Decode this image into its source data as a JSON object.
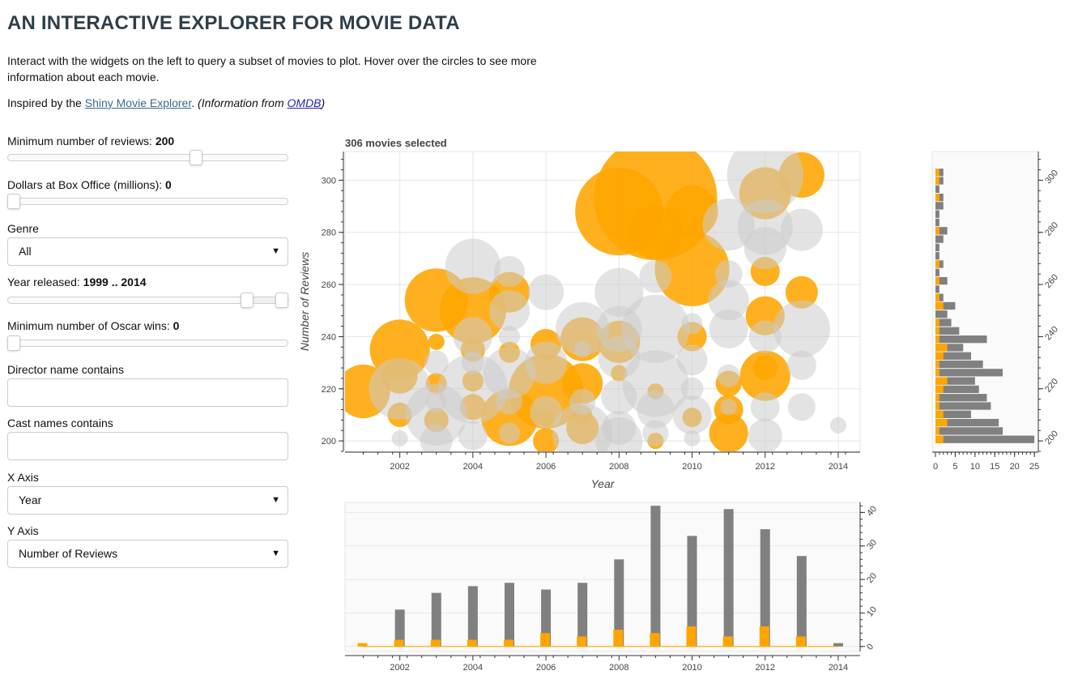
{
  "header": {
    "title": "AN INTERACTIVE EXPLORER FOR MOVIE DATA",
    "intro": "Interact with the widgets on the left to query a subset of movies to plot. Hover over the circles to see more information about each movie.",
    "inspired_prefix": "Inspired by the ",
    "shiny_link": "Shiny Movie Explorer",
    "inspired_mid": ". ",
    "info_prefix": "(Information from ",
    "omdb_link": "OMDB",
    "info_suffix": ")"
  },
  "controls": {
    "min_reviews": {
      "label": "Minimum number of reviews: ",
      "value": "200",
      "fraction": 0.68
    },
    "box_office": {
      "label": "Dollars at Box Office (millions): ",
      "value": "0",
      "fraction": 0.0
    },
    "genre": {
      "label": "Genre",
      "value": "All"
    },
    "year_released": {
      "label": "Year released: ",
      "value": "1999 .. 2014",
      "low_fraction": 0.87,
      "high_fraction": 1.0
    },
    "oscar_wins": {
      "label": "Minimum number of Oscar wins: ",
      "value": "0",
      "fraction": 0.0
    },
    "director": {
      "label": "Director name contains",
      "value": ""
    },
    "cast": {
      "label": "Cast names contains",
      "value": ""
    },
    "x_axis": {
      "label": "X Axis",
      "value": "Year"
    },
    "y_axis": {
      "label": "Y Axis",
      "value": "Number of Reviews"
    }
  },
  "icons": {
    "caret": "▼"
  },
  "colors": {
    "highlight": "#ffa500",
    "muted": "#cccccc",
    "hist": "#808080",
    "title": "#2f3f49"
  },
  "chart_data": [
    {
      "type": "scatter",
      "title": "306 movies selected",
      "xlabel": "Year",
      "ylabel": "Number of Reviews",
      "xlim": [
        2000.5,
        2014.6
      ],
      "ylim": [
        196,
        311
      ],
      "xticks": [
        2002,
        2004,
        2006,
        2008,
        2010,
        2012,
        2014
      ],
      "yticks": [
        200,
        220,
        240,
        260,
        280,
        300
      ],
      "grid": true,
      "series": [
        {
          "color": "#ffa500",
          "points": [
            {
              "x": 2001,
              "y": 219,
              "r": 3.3
            },
            {
              "x": 2002,
              "y": 235,
              "r": 3.7
            },
            {
              "x": 2002,
              "y": 225,
              "r": 2.2
            },
            {
              "x": 2002,
              "y": 210,
              "r": 1.5
            },
            {
              "x": 2003,
              "y": 254,
              "r": 3.9
            },
            {
              "x": 2003,
              "y": 238,
              "r": 1.0
            },
            {
              "x": 2003,
              "y": 222,
              "r": 1.3
            },
            {
              "x": 2003,
              "y": 208,
              "r": 1.5
            },
            {
              "x": 2004,
              "y": 250,
              "r": 4.1
            },
            {
              "x": 2004,
              "y": 235,
              "r": 1.5
            },
            {
              "x": 2004,
              "y": 223,
              "r": 1.3
            },
            {
              "x": 2004,
              "y": 213,
              "r": 1.6
            },
            {
              "x": 2005,
              "y": 257,
              "r": 2.5
            },
            {
              "x": 2005,
              "y": 234,
              "r": 1.3
            },
            {
              "x": 2005,
              "y": 209,
              "r": 3.5
            },
            {
              "x": 2006,
              "y": 237,
              "r": 1.9
            },
            {
              "x": 2006,
              "y": 219,
              "r": 4.6
            },
            {
              "x": 2006,
              "y": 200,
              "r": 1.6
            },
            {
              "x": 2006,
              "y": 209,
              "r": 1.0
            },
            {
              "x": 2007,
              "y": 239,
              "r": 2.7
            },
            {
              "x": 2007,
              "y": 222,
              "r": 2.5
            },
            {
              "x": 2007,
              "y": 210,
              "r": 1.2
            },
            {
              "x": 2007,
              "y": 205,
              "r": 2.0
            },
            {
              "x": 2008,
              "y": 288,
              "r": 5.4
            },
            {
              "x": 2008,
              "y": 238,
              "r": 2.6
            },
            {
              "x": 2008,
              "y": 226,
              "r": 1.0
            },
            {
              "x": 2009,
              "y": 293,
              "r": 7.6
            },
            {
              "x": 2009,
              "y": 280,
              "r": 3.3
            },
            {
              "x": 2009,
              "y": 219,
              "r": 1.0
            },
            {
              "x": 2009,
              "y": 200,
              "r": 1.0
            },
            {
              "x": 2010,
              "y": 288,
              "r": 3.2
            },
            {
              "x": 2010,
              "y": 266,
              "r": 4.6
            },
            {
              "x": 2010,
              "y": 240,
              "r": 1.8
            },
            {
              "x": 2010,
              "y": 209,
              "r": 1.2
            },
            {
              "x": 2011,
              "y": 222,
              "r": 1.6
            },
            {
              "x": 2011,
              "y": 212,
              "r": 1.8
            },
            {
              "x": 2011,
              "y": 203,
              "r": 2.4
            },
            {
              "x": 2012,
              "y": 295,
              "r": 3.2
            },
            {
              "x": 2012,
              "y": 265,
              "r": 1.8
            },
            {
              "x": 2012,
              "y": 248,
              "r": 2.4
            },
            {
              "x": 2012,
              "y": 228,
              "r": 1.5
            },
            {
              "x": 2012,
              "y": 225,
              "r": 3.1
            },
            {
              "x": 2013,
              "y": 302,
              "r": 2.8
            },
            {
              "x": 2013,
              "y": 257,
              "r": 2.0
            }
          ]
        },
        {
          "color": "#cccccc",
          "points": [
            {
              "x": 2002,
              "y": 220,
              "r": 3.8
            },
            {
              "x": 2002,
              "y": 201,
              "r": 1.0
            },
            {
              "x": 2003,
              "y": 230,
              "r": 1.5
            },
            {
              "x": 2003,
              "y": 215,
              "r": 1.3
            },
            {
              "x": 2003,
              "y": 200,
              "r": 2.0
            },
            {
              "x": 2003,
              "y": 210,
              "r": 3.8
            },
            {
              "x": 2004,
              "y": 267,
              "r": 3.4
            },
            {
              "x": 2004,
              "y": 240,
              "r": 2.4
            },
            {
              "x": 2004,
              "y": 230,
              "r": 1.4
            },
            {
              "x": 2004,
              "y": 220,
              "r": 4.3
            },
            {
              "x": 2004,
              "y": 202,
              "r": 1.8
            },
            {
              "x": 2005,
              "y": 265,
              "r": 1.9
            },
            {
              "x": 2005,
              "y": 250,
              "r": 2.5
            },
            {
              "x": 2005,
              "y": 240,
              "r": 1.3
            },
            {
              "x": 2005,
              "y": 226,
              "r": 3.2
            },
            {
              "x": 2005,
              "y": 215,
              "r": 1.6
            },
            {
              "x": 2005,
              "y": 203,
              "r": 1.3
            },
            {
              "x": 2006,
              "y": 257,
              "r": 2.2
            },
            {
              "x": 2006,
              "y": 230,
              "r": 2.6
            },
            {
              "x": 2006,
              "y": 211,
              "r": 2.0
            },
            {
              "x": 2007,
              "y": 243,
              "r": 3.3
            },
            {
              "x": 2007,
              "y": 235,
              "r": 1.0
            },
            {
              "x": 2007,
              "y": 215,
              "r": 1.6
            },
            {
              "x": 2007,
              "y": 203,
              "r": 3.7
            },
            {
              "x": 2008,
              "y": 257,
              "r": 3.0
            },
            {
              "x": 2008,
              "y": 243,
              "r": 2.8
            },
            {
              "x": 2008,
              "y": 232,
              "r": 2.6
            },
            {
              "x": 2008,
              "y": 217,
              "r": 2.2
            },
            {
              "x": 2008,
              "y": 205,
              "r": 2.1
            },
            {
              "x": 2008,
              "y": 200,
              "r": 2.9
            },
            {
              "x": 2009,
              "y": 263,
              "r": 2.0
            },
            {
              "x": 2009,
              "y": 243,
              "r": 4.2
            },
            {
              "x": 2009,
              "y": 222,
              "r": 4.1
            },
            {
              "x": 2009,
              "y": 212,
              "r": 2.3
            },
            {
              "x": 2009,
              "y": 203,
              "r": 1.6
            },
            {
              "x": 2010,
              "y": 245,
              "r": 1.3
            },
            {
              "x": 2010,
              "y": 231,
              "r": 1.9
            },
            {
              "x": 2010,
              "y": 220,
              "r": 1.4
            },
            {
              "x": 2010,
              "y": 210,
              "r": 2.4
            },
            {
              "x": 2010,
              "y": 201,
              "r": 1.0
            },
            {
              "x": 2011,
              "y": 283,
              "r": 3.2
            },
            {
              "x": 2011,
              "y": 264,
              "r": 1.7
            },
            {
              "x": 2011,
              "y": 254,
              "r": 2.5
            },
            {
              "x": 2011,
              "y": 243,
              "r": 2.4
            },
            {
              "x": 2011,
              "y": 225,
              "r": 1.4
            },
            {
              "x": 2011,
              "y": 213,
              "r": 1.0
            },
            {
              "x": 2012,
              "y": 302,
              "r": 4.7
            },
            {
              "x": 2012,
              "y": 282,
              "r": 3.4
            },
            {
              "x": 2012,
              "y": 274,
              "r": 2.6
            },
            {
              "x": 2012,
              "y": 240,
              "r": 2.0
            },
            {
              "x": 2012,
              "y": 213,
              "r": 1.8
            },
            {
              "x": 2012,
              "y": 202,
              "r": 2.1
            },
            {
              "x": 2013,
              "y": 281,
              "r": 2.6
            },
            {
              "x": 2013,
              "y": 243,
              "r": 3.5
            },
            {
              "x": 2013,
              "y": 229,
              "r": 1.8
            },
            {
              "x": 2013,
              "y": 213,
              "r": 1.7
            },
            {
              "x": 2014,
              "y": 206,
              "r": 1.0
            }
          ]
        }
      ]
    },
    {
      "type": "bar",
      "orientation": "horizontal",
      "bin_start": 199,
      "bin_width": 3.2,
      "xlim": [
        0,
        26
      ],
      "ylim": [
        196,
        311
      ],
      "xticks": [
        0,
        5,
        10,
        15,
        20,
        25
      ],
      "yticks": [
        200,
        220,
        240,
        260,
        280,
        300
      ],
      "series": [
        {
          "color": "#808080",
          "values": [
            25,
            17,
            16,
            9,
            14,
            13,
            11,
            10,
            17,
            12,
            9,
            7,
            13,
            6,
            4,
            3,
            5,
            2,
            1,
            3,
            1,
            2,
            1,
            1,
            2,
            3,
            1,
            1,
            2,
            2,
            1,
            2,
            2
          ]
        },
        {
          "color": "#ffa500",
          "values": [
            2,
            1,
            3,
            2,
            1,
            1,
            2,
            3,
            1,
            1,
            2,
            3,
            1,
            1,
            1,
            0,
            2,
            1,
            0,
            1,
            0,
            1,
            0,
            0,
            0,
            1,
            0,
            0,
            0,
            1,
            0,
            1,
            1
          ]
        }
      ]
    },
    {
      "type": "bar",
      "xlim": [
        2000.5,
        2014.6
      ],
      "ylim": [
        -1.5,
        43
      ],
      "xticks": [
        2002,
        2004,
        2006,
        2008,
        2010,
        2012,
        2014
      ],
      "yticks": [
        0,
        10,
        20,
        30,
        40
      ],
      "categories": [
        2001,
        2002,
        2003,
        2004,
        2005,
        2006,
        2007,
        2008,
        2009,
        2010,
        2011,
        2012,
        2013,
        2014
      ],
      "series": [
        {
          "color": "#808080",
          "values": [
            0,
            11,
            16,
            18,
            19,
            17,
            19,
            26,
            42,
            33,
            41,
            35,
            27,
            1
          ]
        },
        {
          "color": "#ffa500",
          "values": [
            1,
            2,
            2,
            2,
            2,
            4,
            3,
            5,
            4,
            6,
            3,
            6,
            3,
            0
          ]
        }
      ]
    }
  ]
}
